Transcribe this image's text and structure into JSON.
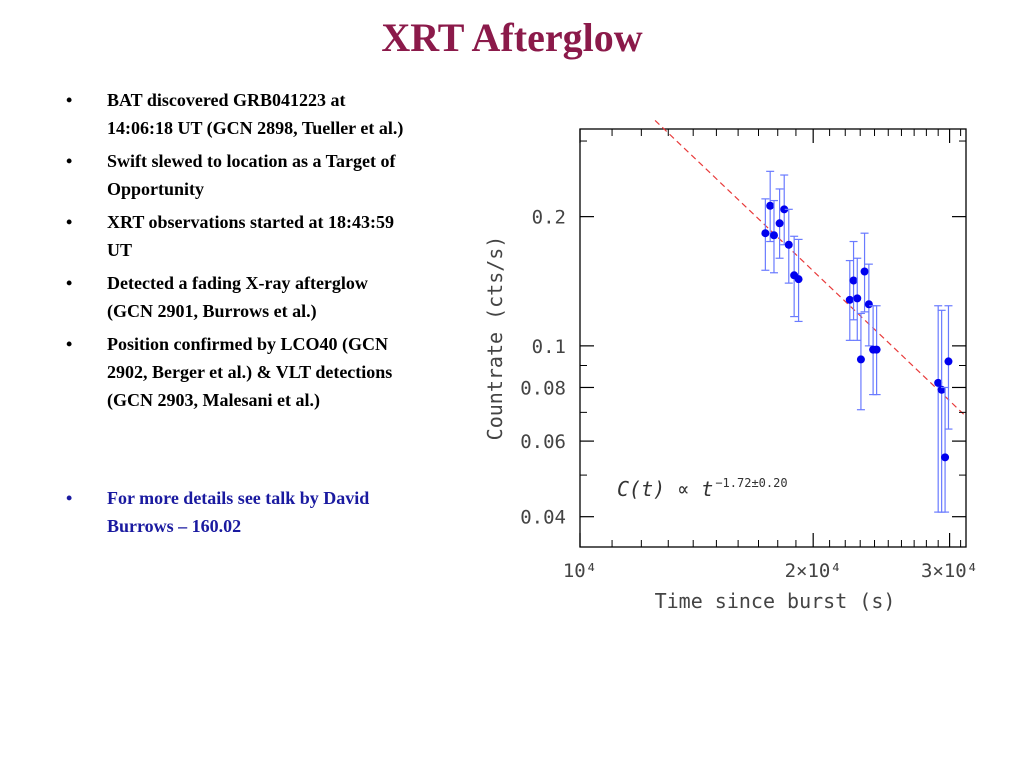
{
  "slide": {
    "title": "XRT Afterglow",
    "bullet_symbol": "•",
    "bullets": [
      "BAT discovered GRB041223 at 14:06:18 UT (GCN 2898, Tueller et al.)",
      "Swift slewed to location as a Target of Opportunity",
      "XRT observations started at 18:43:59 UT",
      "Detected a fading X-ray afterglow (GCN 2901, Burrows et al.)",
      "Position confirmed by LCO40 (GCN 2902, Berger et al.) & VLT detections (GCN 2903, Malesani et al.)"
    ],
    "link_bullet": "For more details see talk by David Burrows – 160.02",
    "link_color": "#1a1aa0",
    "title_color": "#8b1a4a"
  },
  "chart_data": {
    "type": "scatter",
    "xlabel": "Time since burst (s)",
    "ylabel": "Countrate (cts/s)",
    "x_scale": "log",
    "y_scale": "log",
    "xlim": [
      10000,
      31500
    ],
    "ylim": [
      0.034,
      0.32
    ],
    "x_ticks": [
      {
        "value": 10000,
        "label": "10⁴"
      },
      {
        "value": 20000,
        "label": "2×10⁴"
      },
      {
        "value": 30000,
        "label": "3×10⁴"
      }
    ],
    "y_ticks": [
      {
        "value": 0.04,
        "label": "0.04"
      },
      {
        "value": 0.06,
        "label": "0.06"
      },
      {
        "value": 0.08,
        "label": "0.08"
      },
      {
        "value": 0.1,
        "label": "0.1"
      },
      {
        "value": 0.2,
        "label": "0.2"
      }
    ],
    "annotation": {
      "text_main": "C(t) ∝ t",
      "exponent": "−1.72±0.20"
    },
    "point_color": "#0000ee",
    "errorbar_color": "#6a7bff",
    "fit_color": "#e83a3a",
    "fit_line": {
      "x": [
        12500,
        31500
      ],
      "y": [
        0.335
      ],
      "slope": -1.72,
      "y_end": 0.0685
    },
    "points": [
      {
        "x": 17350,
        "y": 0.183,
        "lo": 0.15,
        "hi": 0.22
      },
      {
        "x": 17600,
        "y": 0.212,
        "lo": 0.175,
        "hi": 0.255
      },
      {
        "x": 17800,
        "y": 0.181,
        "lo": 0.148,
        "hi": 0.218
      },
      {
        "x": 18100,
        "y": 0.193,
        "lo": 0.16,
        "hi": 0.232
      },
      {
        "x": 18350,
        "y": 0.208,
        "lo": 0.172,
        "hi": 0.25
      },
      {
        "x": 18600,
        "y": 0.172,
        "lo": 0.14,
        "hi": 0.208
      },
      {
        "x": 18900,
        "y": 0.146,
        "lo": 0.117,
        "hi": 0.18
      },
      {
        "x": 19150,
        "y": 0.143,
        "lo": 0.114,
        "hi": 0.177
      },
      {
        "x": 22300,
        "y": 0.128,
        "lo": 0.103,
        "hi": 0.158
      },
      {
        "x": 22550,
        "y": 0.142,
        "lo": 0.115,
        "hi": 0.175
      },
      {
        "x": 22800,
        "y": 0.129,
        "lo": 0.103,
        "hi": 0.16
      },
      {
        "x": 23050,
        "y": 0.093,
        "lo": 0.071,
        "hi": 0.119
      },
      {
        "x": 23300,
        "y": 0.149,
        "lo": 0.12,
        "hi": 0.183
      },
      {
        "x": 23600,
        "y": 0.125,
        "lo": 0.1,
        "hi": 0.155
      },
      {
        "x": 23900,
        "y": 0.098,
        "lo": 0.077,
        "hi": 0.124
      },
      {
        "x": 24150,
        "y": 0.098,
        "lo": 0.077,
        "hi": 0.124
      },
      {
        "x": 29000,
        "y": 0.082,
        "lo": 0.041,
        "hi": 0.124
      },
      {
        "x": 29300,
        "y": 0.079,
        "lo": 0.041,
        "hi": 0.121
      },
      {
        "x": 29600,
        "y": 0.055,
        "lo": 0.041,
        "hi": 0.08
      },
      {
        "x": 29900,
        "y": 0.092,
        "lo": 0.064,
        "hi": 0.124
      }
    ]
  }
}
